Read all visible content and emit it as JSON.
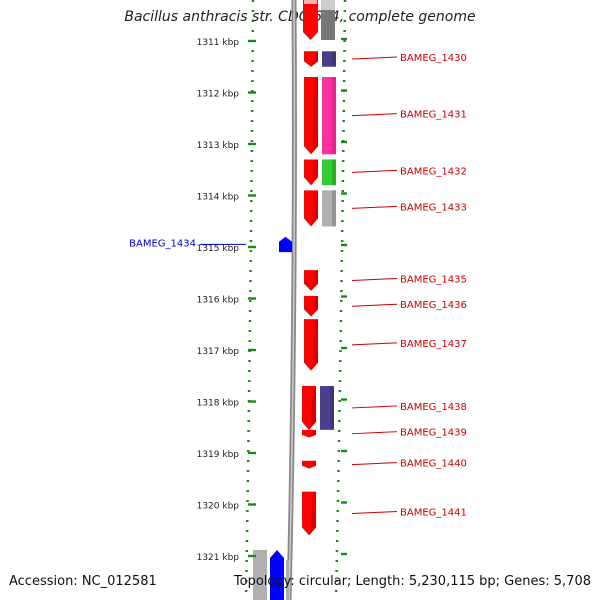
{
  "title": "Bacillus anthracis str. CDC 684, complete genome",
  "footer": {
    "accession": "Accession: NC_012581",
    "summary": "Topology: circular; Length: 5,230,115 bp; Genes: 5,708"
  },
  "colors": {
    "reverse_gene": "#ff0000",
    "forward_gene": "#0000ff",
    "cog_purple": "#4b3f8c",
    "cog_pink": "#ff2fa0",
    "cog_green": "#33cc33",
    "cog_gray": "#b0b0b0",
    "backbone": "#888888",
    "tick_green": "#1a8a1a",
    "label_red": "#cc0000",
    "label_blue": "#0000cc"
  },
  "scale": {
    "ticks": [
      {
        "label": "1311 kbp",
        "kbp": 1311
      },
      {
        "label": "1312 kbp",
        "kbp": 1312
      },
      {
        "label": "1313 kbp",
        "kbp": 1313
      },
      {
        "label": "1314 kbp",
        "kbp": 1314
      },
      {
        "label": "1315 kbp",
        "kbp": 1315
      },
      {
        "label": "1316 kbp",
        "kbp": 1316
      },
      {
        "label": "1317 kbp",
        "kbp": 1317
      },
      {
        "label": "1318 kbp",
        "kbp": 1318
      },
      {
        "label": "1319 kbp",
        "kbp": 1319
      },
      {
        "label": "1320 kbp",
        "kbp": 1320
      },
      {
        "label": "1321 kbp",
        "kbp": 1321
      }
    ]
  },
  "genes": [
    {
      "label": "BAMEG_1430",
      "strand": "-",
      "start_kbp": 1311.2,
      "end_kbp": 1311.5,
      "cog": "cog_purple"
    },
    {
      "label": "BAMEG_1431",
      "strand": "-",
      "start_kbp": 1311.7,
      "end_kbp": 1313.2,
      "cog": "cog_pink"
    },
    {
      "label": "BAMEG_1432",
      "strand": "-",
      "start_kbp": 1313.3,
      "end_kbp": 1313.8,
      "cog": "cog_green"
    },
    {
      "label": "BAMEG_1433",
      "strand": "-",
      "start_kbp": 1313.9,
      "end_kbp": 1314.6,
      "cog": "cog_gray"
    },
    {
      "label": "BAMEG_1434",
      "strand": "+",
      "start_kbp": 1314.8,
      "end_kbp": 1315.1,
      "cog": ""
    },
    {
      "label": "BAMEG_1435",
      "strand": "-",
      "start_kbp": 1315.45,
      "end_kbp": 1315.85,
      "cog": ""
    },
    {
      "label": "BAMEG_1436",
      "strand": "-",
      "start_kbp": 1315.95,
      "end_kbp": 1316.35,
      "cog": ""
    },
    {
      "label": "BAMEG_1437",
      "strand": "-",
      "start_kbp": 1316.4,
      "end_kbp": 1317.4,
      "cog": ""
    },
    {
      "label": "BAMEG_1438",
      "strand": "-",
      "start_kbp": 1317.7,
      "end_kbp": 1318.55,
      "cog": "cog_purple"
    },
    {
      "label": "BAMEG_1439",
      "strand": "-",
      "start_kbp": 1318.55,
      "end_kbp": 1318.7,
      "cog": ""
    },
    {
      "label": "BAMEG_1440",
      "strand": "-",
      "start_kbp": 1319.15,
      "end_kbp": 1319.3,
      "cog": ""
    },
    {
      "label": "BAMEG_1441",
      "strand": "-",
      "start_kbp": 1319.75,
      "end_kbp": 1320.6,
      "cog": ""
    }
  ]
}
